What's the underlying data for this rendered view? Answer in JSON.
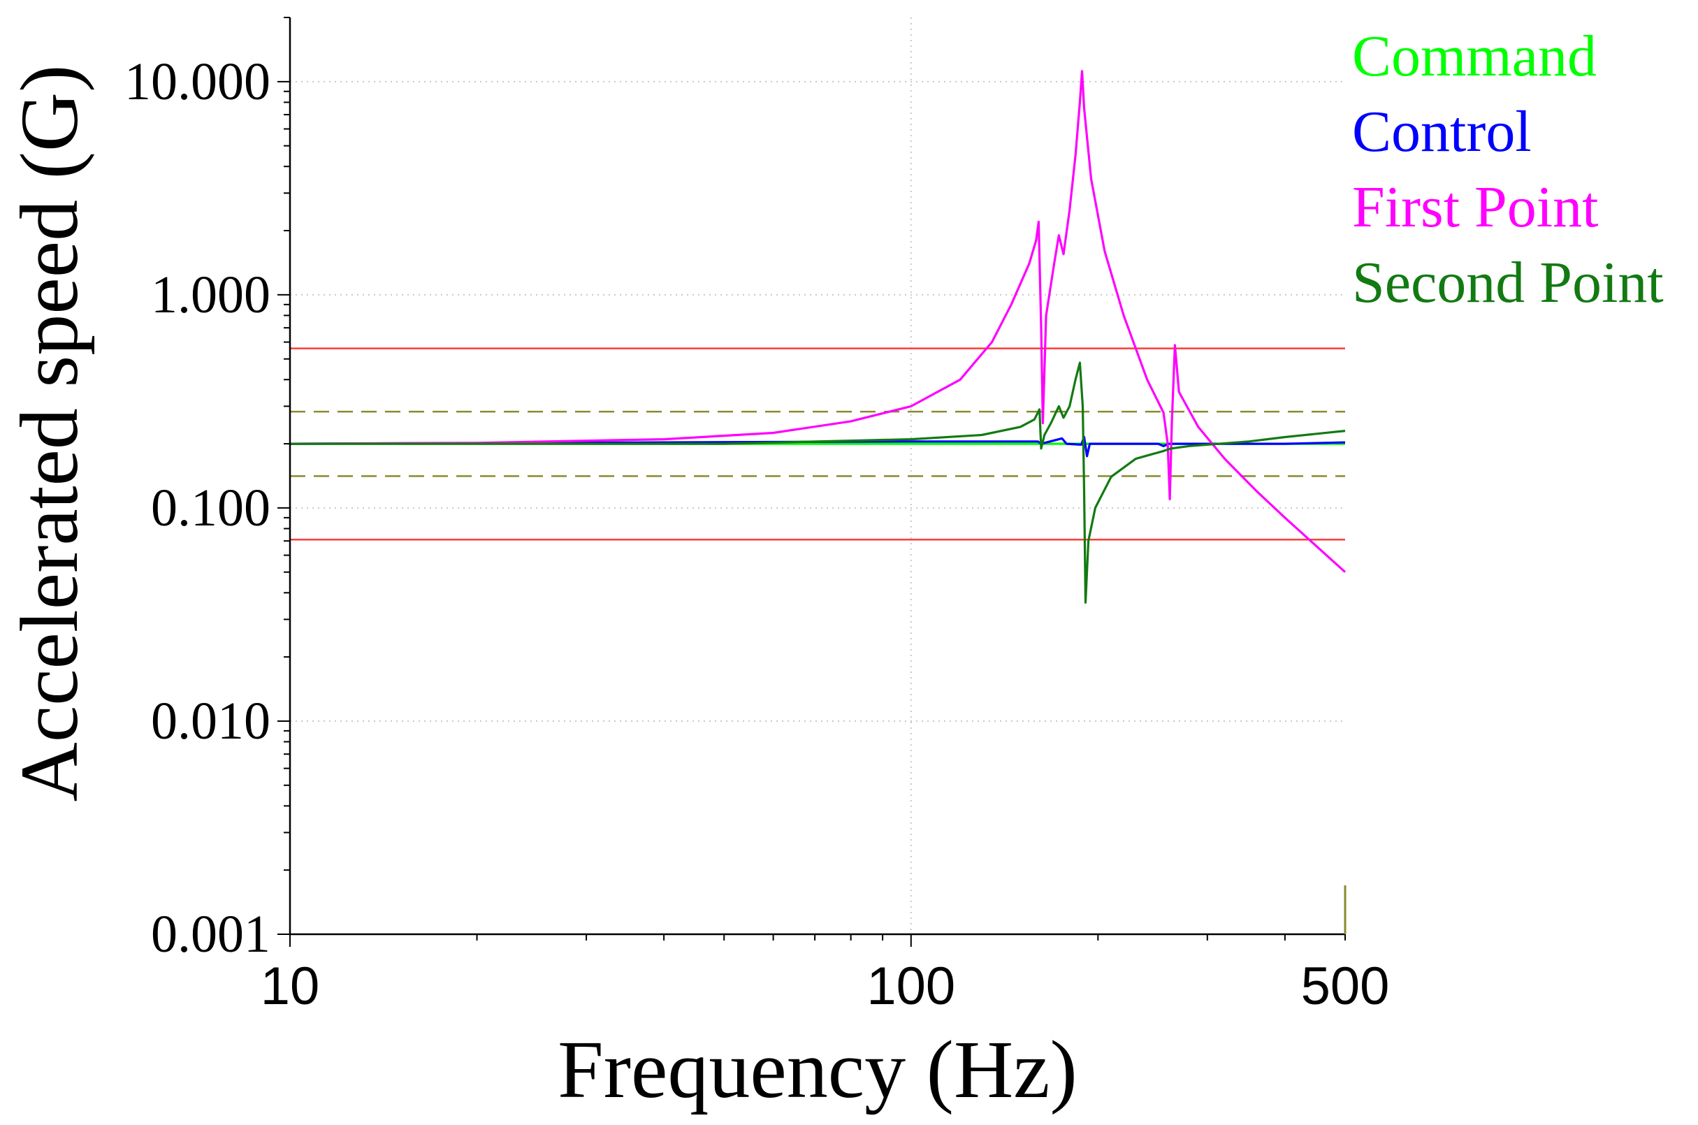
{
  "chart_data": {
    "type": "line",
    "xlabel": "Frequency (Hz)",
    "ylabel": "Accelerated speed (G)",
    "xscale": "log",
    "yscale": "log",
    "xlim": [
      10,
      500
    ],
    "ylim": [
      0.001,
      20
    ],
    "x_ticks": [
      {
        "value": 10,
        "label": "10"
      },
      {
        "value": 100,
        "label": "100"
      },
      {
        "value": 500,
        "label": "500"
      }
    ],
    "y_ticks": [
      {
        "value": 0.001,
        "label": "0.001"
      },
      {
        "value": 0.01,
        "label": "0.010"
      },
      {
        "value": 0.1,
        "label": "0.100"
      },
      {
        "value": 1,
        "label": "1.000"
      },
      {
        "value": 10,
        "label": "10.000"
      }
    ],
    "grid": "dotted",
    "legend_position": "right",
    "reference_lines": [
      {
        "name": "upper-abort-limit",
        "value": 0.56,
        "style": "solid",
        "color": "#ff3b3b"
      },
      {
        "name": "upper-alarm-limit",
        "value": 0.283,
        "style": "dashed",
        "color": "#8a8a2e"
      },
      {
        "name": "lower-alarm-limit",
        "value": 0.141,
        "style": "dashed",
        "color": "#8a8a2e"
      },
      {
        "name": "lower-abort-limit",
        "value": 0.071,
        "style": "solid",
        "color": "#ff3b3b"
      }
    ],
    "series": [
      {
        "name": "Command",
        "color": "#00ff00",
        "points": [
          [
            10,
            0.2
          ],
          [
            500,
            0.2
          ]
        ]
      },
      {
        "name": "Control",
        "color": "#0000ff",
        "points": [
          [
            10,
            0.2
          ],
          [
            100,
            0.205
          ],
          [
            160,
            0.205
          ],
          [
            162,
            0.2
          ],
          [
            175,
            0.212
          ],
          [
            178,
            0.2
          ],
          [
            188,
            0.198
          ],
          [
            190,
            0.215
          ],
          [
            192,
            0.175
          ],
          [
            194,
            0.2
          ],
          [
            250,
            0.2
          ],
          [
            255,
            0.195
          ],
          [
            260,
            0.2
          ],
          [
            400,
            0.2
          ],
          [
            500,
            0.203
          ]
        ]
      },
      {
        "name": "First Point",
        "color": "#ff00ff",
        "points": [
          [
            10,
            0.2
          ],
          [
            20,
            0.202
          ],
          [
            40,
            0.21
          ],
          [
            60,
            0.225
          ],
          [
            80,
            0.255
          ],
          [
            100,
            0.3
          ],
          [
            120,
            0.4
          ],
          [
            135,
            0.6
          ],
          [
            145,
            0.9
          ],
          [
            155,
            1.4
          ],
          [
            159,
            1.8
          ],
          [
            160.5,
            2.2
          ],
          [
            162,
            0.7
          ],
          [
            163,
            0.25
          ],
          [
            165,
            0.8
          ],
          [
            170,
            1.4
          ],
          [
            173,
            1.9
          ],
          [
            176,
            1.55
          ],
          [
            180,
            2.5
          ],
          [
            184,
            4.5
          ],
          [
            187,
            8.0
          ],
          [
            188.5,
            11.2
          ],
          [
            190,
            7.5
          ],
          [
            195,
            3.5
          ],
          [
            205,
            1.6
          ],
          [
            220,
            0.8
          ],
          [
            240,
            0.4
          ],
          [
            255,
            0.28
          ],
          [
            259,
            0.2
          ],
          [
            261,
            0.11
          ],
          [
            263,
            0.25
          ],
          [
            266,
            0.58
          ],
          [
            270,
            0.35
          ],
          [
            290,
            0.24
          ],
          [
            320,
            0.17
          ],
          [
            360,
            0.12
          ],
          [
            400,
            0.09
          ],
          [
            440,
            0.07
          ],
          [
            500,
            0.05
          ]
        ]
      },
      {
        "name": "Second Point",
        "color": "#127a12",
        "points": [
          [
            10,
            0.2
          ],
          [
            50,
            0.2
          ],
          [
            100,
            0.21
          ],
          [
            130,
            0.22
          ],
          [
            150,
            0.24
          ],
          [
            158,
            0.26
          ],
          [
            161,
            0.29
          ],
          [
            162,
            0.19
          ],
          [
            164,
            0.22
          ],
          [
            168,
            0.25
          ],
          [
            173,
            0.3
          ],
          [
            176,
            0.265
          ],
          [
            180,
            0.3
          ],
          [
            184,
            0.4
          ],
          [
            187,
            0.48
          ],
          [
            189,
            0.3
          ],
          [
            190,
            0.12
          ],
          [
            191,
            0.036
          ],
          [
            193,
            0.07
          ],
          [
            198,
            0.1
          ],
          [
            210,
            0.14
          ],
          [
            230,
            0.17
          ],
          [
            255,
            0.185
          ],
          [
            262,
            0.19
          ],
          [
            280,
            0.195
          ],
          [
            350,
            0.205
          ],
          [
            400,
            0.215
          ],
          [
            500,
            0.23
          ]
        ]
      }
    ]
  }
}
